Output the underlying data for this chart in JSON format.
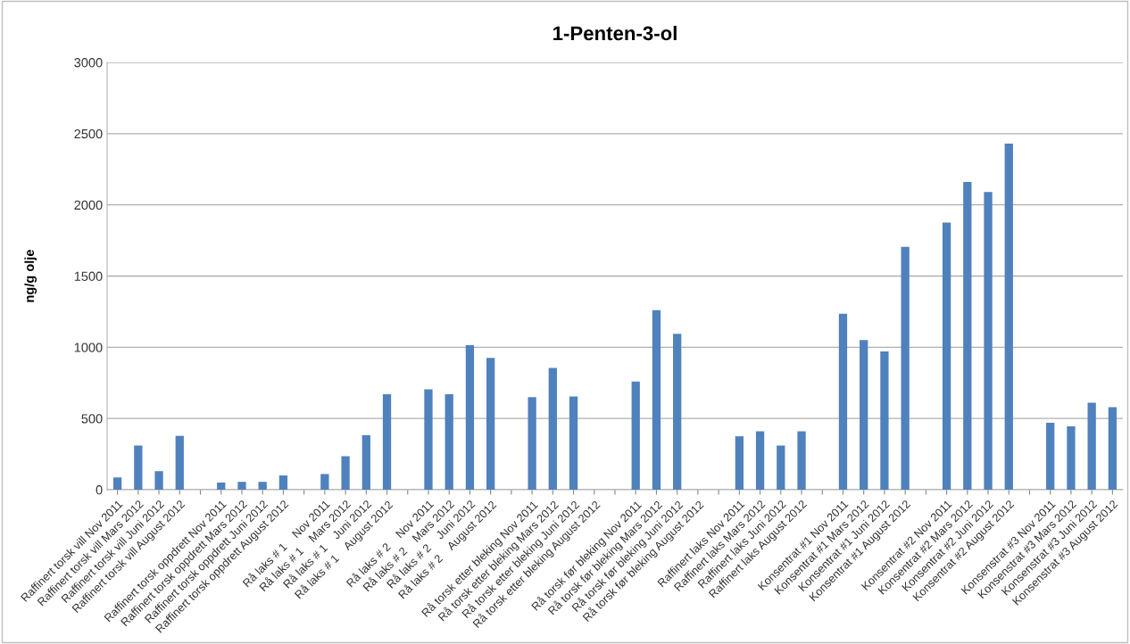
{
  "chart_data": {
    "type": "bar",
    "title": "1-Penten-3-ol",
    "ylabel": "ng/g olje",
    "categories": [
      "Raffinert torsk vill Nov 2011",
      "Raffinert torsk vill Mars 2012",
      "Raffinert torsk vill Juni 2012",
      "Raffinert torsk vill August 2012",
      null,
      "Raffinert torsk oppdrett Nov 2011",
      "Raffinert torsk oppdrett Mars 2012",
      "Raffinert torsk oppdrett Juni 2012",
      "Raffinert torsk oppdrett August 2012",
      null,
      "Rå laks # 1    Nov 2011",
      "Rå laks # 1    Mars 2012",
      "Rå laks # 1    Juni 2012",
      "Rå laks # 1    August 2012",
      null,
      "Rå laks # 2    Nov 2011",
      "Rå laks # 2    Mars 2012",
      "Rå laks # 2    Juni 2012",
      "Rå laks # 2    August 2012",
      null,
      "Rå torsk etter bleking Nov 2011",
      "Rå torsk etter bleking Mars 2012",
      "Rå torsk etter bleking Juni 2012",
      "Rå torsk etter bleking August 2012",
      null,
      "Rå torsk før bleking Nov 2011",
      "Rå torsk før bleking Mars 2012",
      "Rå torsk før bleking Juni 2012",
      "Rå torsk før bleking August 2012",
      null,
      "Raffinert laks Nov 2011",
      "Raffinert laks Mars 2012",
      "Raffinert laks Juni 2012",
      "Raffinert laks August 2012",
      null,
      "Konsentrat #1 Nov 2011",
      "Konsentrat #1 Mars 2012",
      "Konsentrat #1 Juni 2012",
      "Konsentrat #1 August 2012",
      null,
      "Konsentrat #2 Nov 2011",
      "Konsentrat #2 Mars 2012",
      "Konsentrat #2 Juni 2012",
      "Konsentrat #2 August 2012",
      null,
      "Konsenstrat #3 Nov 2011",
      "Konsenstrat #3 Mars 2012",
      "Konsenstrat #3 Juni 2012",
      "Konsenstrat #3 August 2012"
    ],
    "values": [
      86,
      310,
      130,
      378,
      null,
      50,
      55,
      55,
      100,
      null,
      110,
      235,
      383,
      670,
      null,
      705,
      670,
      1015,
      925,
      null,
      650,
      855,
      655,
      null,
      null,
      760,
      1260,
      1095,
      null,
      null,
      375,
      410,
      310,
      410,
      null,
      1235,
      1050,
      970,
      1705,
      null,
      1875,
      2160,
      2090,
      2430,
      null,
      470,
      445,
      610,
      580
    ],
    "color": "#4f81bd",
    "ylim": [
      0,
      3000
    ],
    "yticks": [
      0,
      500,
      1000,
      1500,
      2000,
      2500,
      3000
    ],
    "grid": "y",
    "legend": false
  }
}
